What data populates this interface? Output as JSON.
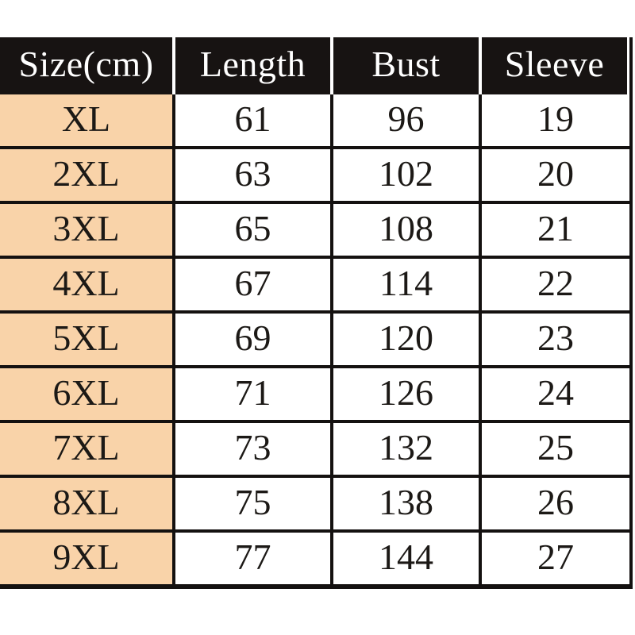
{
  "chart_data": {
    "type": "table",
    "columns": [
      "Size(cm)",
      "Length",
      "Bust",
      "Sleeve"
    ],
    "rows": [
      [
        "XL",
        "61",
        "96",
        "19"
      ],
      [
        "2XL",
        "63",
        "102",
        "20"
      ],
      [
        "3XL",
        "65",
        "108",
        "21"
      ],
      [
        "4XL",
        "67",
        "114",
        "22"
      ],
      [
        "5XL",
        "69",
        "120",
        "23"
      ],
      [
        "6XL",
        "71",
        "126",
        "24"
      ],
      [
        "7XL",
        "73",
        "132",
        "25"
      ],
      [
        "8XL",
        "75",
        "138",
        "26"
      ],
      [
        "9XL",
        "77",
        "144",
        "27"
      ]
    ],
    "layout_hints": {
      "header_bg": "#171312",
      "header_text_color": "#ffffff",
      "size_column_bg": "#f9d3a9",
      "body_cell_bg": "#ffffff",
      "grid_line_color": "#141110",
      "text_color": "#1c1916",
      "page_bg": "#ffffff"
    }
  }
}
